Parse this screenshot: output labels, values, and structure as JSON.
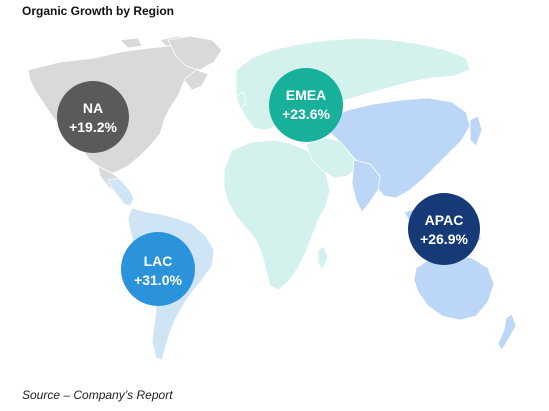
{
  "title": "Organic Growth by Region",
  "source": "Source – Company’s Report",
  "regions": [
    {
      "id": "na",
      "name": "NA",
      "growth": "+19.2%",
      "color": "#5a5a5a"
    },
    {
      "id": "emea",
      "name": "EMEA",
      "growth": "+23.6%",
      "color": "#17b19b"
    },
    {
      "id": "apac",
      "name": "APAC",
      "growth": "+26.9%",
      "color": "#163a78"
    },
    {
      "id": "lac",
      "name": "LAC",
      "growth": "+31.0%",
      "color": "#2b93db"
    }
  ],
  "land_colors": {
    "north_america": "#d9d9d9",
    "latin_america": "#cfe5f6",
    "emea": "#d3f2ee",
    "apac": "#bcd6f7"
  }
}
